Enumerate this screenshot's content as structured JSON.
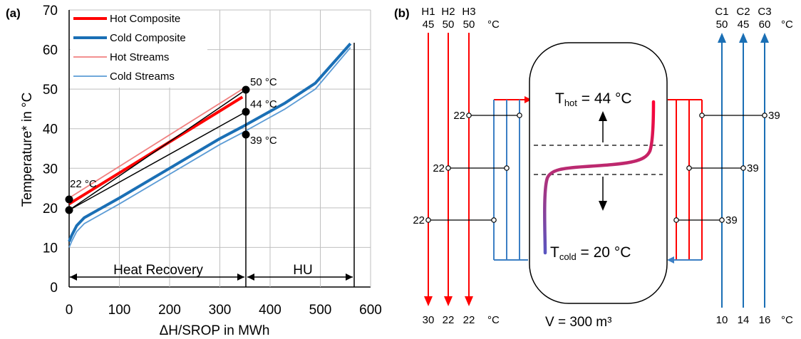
{
  "panel_a": {
    "label": "(a)",
    "xlabel": "ΔH/SROP in MWh",
    "ylabel": "Temperature* in °C",
    "x_ticks": [
      "0",
      "100",
      "200",
      "300",
      "400",
      "500",
      "600"
    ],
    "y_ticks": [
      "0",
      "10",
      "20",
      "30",
      "40",
      "50",
      "60",
      "70"
    ],
    "legend": [
      "Hot Composite",
      "Cold Composite",
      "Hot Streams",
      "Cold Streams"
    ],
    "annotations": {
      "t50": "50 °C",
      "t44": "44 °C",
      "t39": "39 °C",
      "t22": "22 °C",
      "heat_recovery": "Heat Recovery",
      "hu": "HU"
    }
  },
  "panel_b": {
    "label": "(b)",
    "hot_names": [
      "H1",
      "H2",
      "H3"
    ],
    "hot_in": [
      "45",
      "50",
      "50"
    ],
    "hot_out": [
      "30",
      "22",
      "22"
    ],
    "cold_names": [
      "C1",
      "C2",
      "C3"
    ],
    "cold_in": [
      "50",
      "45",
      "60"
    ],
    "cold_out": [
      "10",
      "14",
      "16"
    ],
    "unit": "°C",
    "left_temps": [
      "22",
      "22",
      "22"
    ],
    "right_temps": [
      "39",
      "39",
      "39"
    ],
    "t_hot": {
      "sym": "T",
      "sub": "hot",
      "val": " = 44 °C"
    },
    "t_cold": {
      "sym": "T",
      "sub": "cold",
      "val": " = 20 °C"
    },
    "volume": "V = 300 m³"
  },
  "colors": {
    "hot": "#ff0000",
    "hot_light": "#f08080",
    "cold": "#1a6fb5",
    "cold_light": "#5b9bd5",
    "grid": "#bfbfbf"
  },
  "chart_data": {
    "type": "line",
    "title": "",
    "xlabel": "ΔH/SROP in MWh",
    "ylabel": "Temperature* in °C",
    "xlim": [
      0,
      600
    ],
    "ylim": [
      0,
      70
    ],
    "grid": true,
    "legend_position": "top-left",
    "series": [
      {
        "name": "Hot Composite",
        "x": [
          0,
          345
        ],
        "y": [
          21,
          48
        ]
      },
      {
        "name": "Cold Composite",
        "x": [
          0,
          5,
          15,
          30,
          100,
          200,
          300,
          345,
          430,
          490,
          560
        ],
        "y": [
          11.5,
          13,
          15.5,
          17.5,
          22.5,
          30,
          37.5,
          40.5,
          46.5,
          51.5,
          61.5
        ]
      },
      {
        "name": "Hot Streams",
        "x": [
          0,
          345
        ],
        "y": [
          22.5,
          50
        ]
      },
      {
        "name": "Cold Streams",
        "x": [
          0,
          5,
          15,
          30,
          100,
          200,
          300,
          345,
          430,
          490,
          560
        ],
        "y": [
          10,
          11.5,
          14,
          16,
          21,
          28.5,
          36,
          39,
          45,
          50,
          60.5
        ]
      }
    ]
  }
}
